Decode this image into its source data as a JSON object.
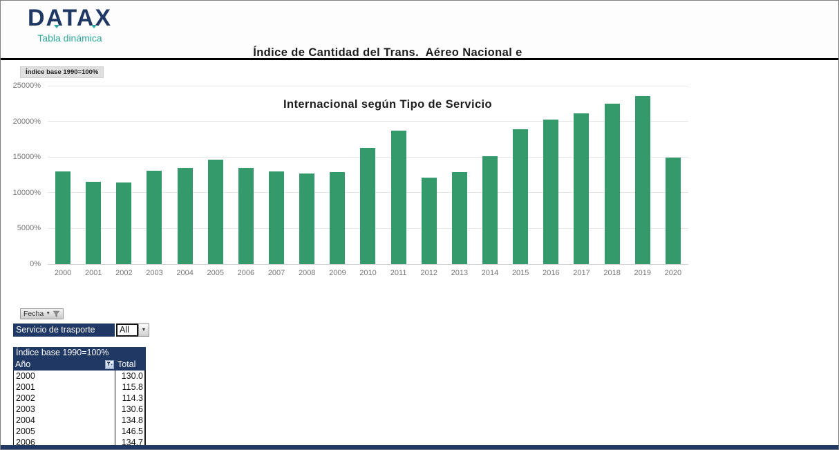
{
  "header": {
    "logo": "DATAX",
    "logo_subtitle": "Tabla dinámica",
    "title_line1": "Índice de Cantidad del Trans.  Aéreo Nacional e",
    "title_line2": "Internacional según Tipo de Servicio"
  },
  "chart": {
    "index_button_label": "Índice base 1990=100%",
    "field_button_label": "Fecha"
  },
  "chart_data": {
    "type": "bar",
    "title": "Índice base 1990=100%",
    "categories": [
      "2000",
      "2001",
      "2002",
      "2003",
      "2004",
      "2005",
      "2006",
      "2007",
      "2008",
      "2009",
      "2010",
      "2011",
      "2012",
      "2013",
      "2014",
      "2015",
      "2016",
      "2017",
      "2018",
      "2019",
      "2020"
    ],
    "values": [
      13000,
      11580,
      11430,
      13060,
      13480,
      14650,
      13470,
      13000,
      12700,
      12850,
      16250,
      18700,
      12150,
      12900,
      15100,
      18850,
      20300,
      21100,
      22450,
      23500,
      14900
    ],
    "xlabel": "",
    "ylabel": "",
    "ylim": [
      0,
      25000
    ],
    "ytick_step": 5000,
    "ytick_suffix": "%",
    "grid": true,
    "legend": null,
    "bar_color": "#34996B"
  },
  "filter": {
    "label": "Servicio de trasporte",
    "value": "All"
  },
  "pivot_table": {
    "title": "Índice base 1990=100%",
    "row_header": "Año",
    "value_header": "Total",
    "rows": [
      {
        "year": "2000",
        "total": "130.0"
      },
      {
        "year": "2001",
        "total": "115.8"
      },
      {
        "year": "2002",
        "total": "114.3"
      },
      {
        "year": "2003",
        "total": "130.6"
      },
      {
        "year": "2004",
        "total": "134.8"
      },
      {
        "year": "2005",
        "total": "146.5"
      },
      {
        "year": "2006",
        "total": "134.7"
      }
    ]
  },
  "colors": {
    "navy": "#203864",
    "teal": "#2AA79B",
    "bar_green": "#34996B",
    "logo_navy": "#1F3864"
  }
}
